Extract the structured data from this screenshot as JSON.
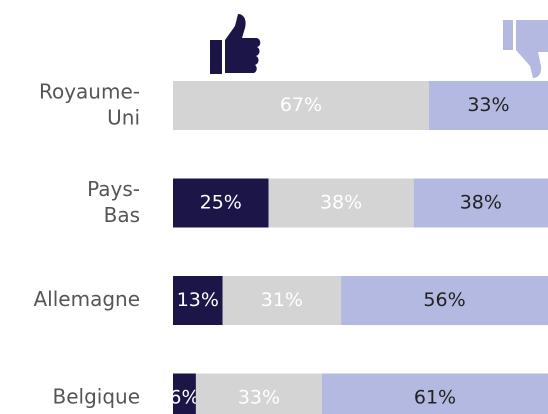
{
  "chart_data": {
    "type": "stacked-bar",
    "categories": [
      "Royaume-Uni",
      "Pays-Bas",
      "Allemagne",
      "Belgique"
    ],
    "series": [
      {
        "color": "#1c1548",
        "label_color": "#ffffff",
        "values": [
          null,
          25,
          13,
          6
        ],
        "value_labels": [
          null,
          "25%",
          "13%",
          "6%"
        ]
      },
      {
        "color": "#d4d4d4",
        "label_color": "#ffffff",
        "values": [
          67,
          38,
          31,
          33
        ],
        "value_labels": [
          "67%",
          "38%",
          "31%",
          "33%"
        ]
      },
      {
        "color": "#b4b9e1",
        "label_color": "#222222",
        "values": [
          33,
          38,
          56,
          61
        ],
        "value_labels": [
          "33%",
          "38%",
          "56%",
          "61%"
        ]
      }
    ],
    "xlim": [
      0,
      100
    ]
  }
}
